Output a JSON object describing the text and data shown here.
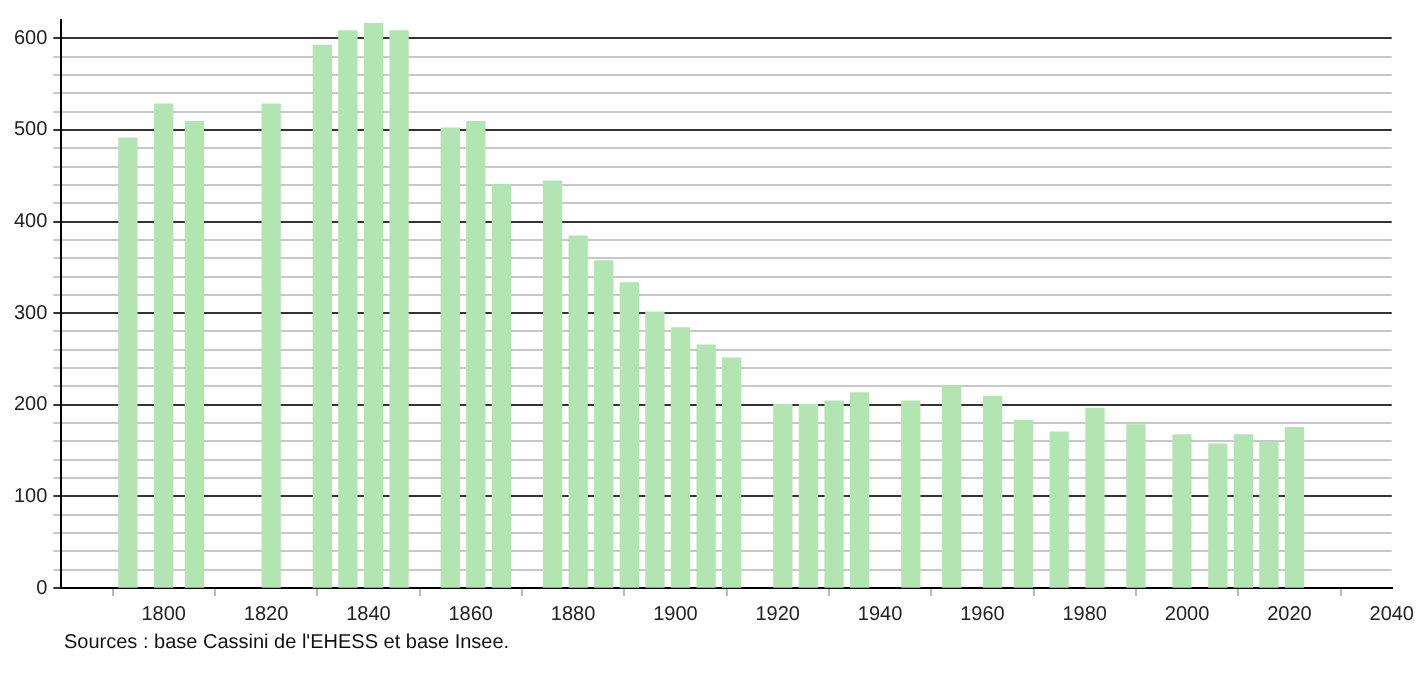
{
  "chart_data": {
    "type": "bar",
    "x": [
      1793,
      1800,
      1806,
      1821,
      1831,
      1836,
      1841,
      1846,
      1856,
      1861,
      1866,
      1876,
      1881,
      1886,
      1891,
      1896,
      1901,
      1906,
      1911,
      1921,
      1926,
      1931,
      1936,
      1946,
      1954,
      1962,
      1968,
      1975,
      1982,
      1990,
      1999,
      2006,
      2011,
      2016,
      2021
    ],
    "values": [
      491,
      528,
      509,
      528,
      592,
      608,
      616,
      608,
      502,
      509,
      440,
      444,
      384,
      357,
      333,
      301,
      284,
      265,
      251,
      200,
      200,
      204,
      213,
      204,
      221,
      209,
      183,
      170,
      196,
      178,
      167,
      157,
      167,
      159,
      175
    ],
    "color": "#b3e5b3",
    "xlim": [
      1780,
      2040
    ],
    "xticks": [
      1800,
      1820,
      1840,
      1860,
      1880,
      1900,
      1920,
      1940,
      1960,
      1980,
      2000,
      2020,
      2040
    ],
    "ylim": [
      0,
      620
    ],
    "yticks": [
      0,
      {
        "value": 20,
        "label": null
      },
      {
        "value": 40,
        "label": null
      },
      {
        "value": 60,
        "label": null
      },
      {
        "value": 80,
        "label": null
      },
      100,
      {
        "value": 120,
        "label": null
      },
      {
        "value": 140,
        "label": null
      },
      {
        "value": 160,
        "label": null
      },
      {
        "value": 180,
        "label": null
      },
      200,
      {
        "value": 220,
        "label": null
      },
      {
        "value": 240,
        "label": null
      },
      {
        "value": 260,
        "label": null
      },
      {
        "value": 280,
        "label": null
      },
      300,
      {
        "value": 320,
        "label": null
      },
      {
        "value": 340,
        "label": null
      },
      {
        "value": 360,
        "label": null
      },
      {
        "value": 380,
        "label": null
      },
      400,
      {
        "value": 420,
        "label": null
      },
      {
        "value": 440,
        "label": null
      },
      {
        "value": 460,
        "label": null
      },
      {
        "value": 480,
        "label": null
      },
      500,
      {
        "value": 520,
        "label": null
      },
      {
        "value": 540,
        "label": null
      },
      {
        "value": 560,
        "label": null
      },
      {
        "value": 580,
        "label": null
      },
      600
    ],
    "grid": "y",
    "legend": false,
    "annotations": [
      "Sources : base Cassini de l'EHESS et base Insee."
    ]
  }
}
